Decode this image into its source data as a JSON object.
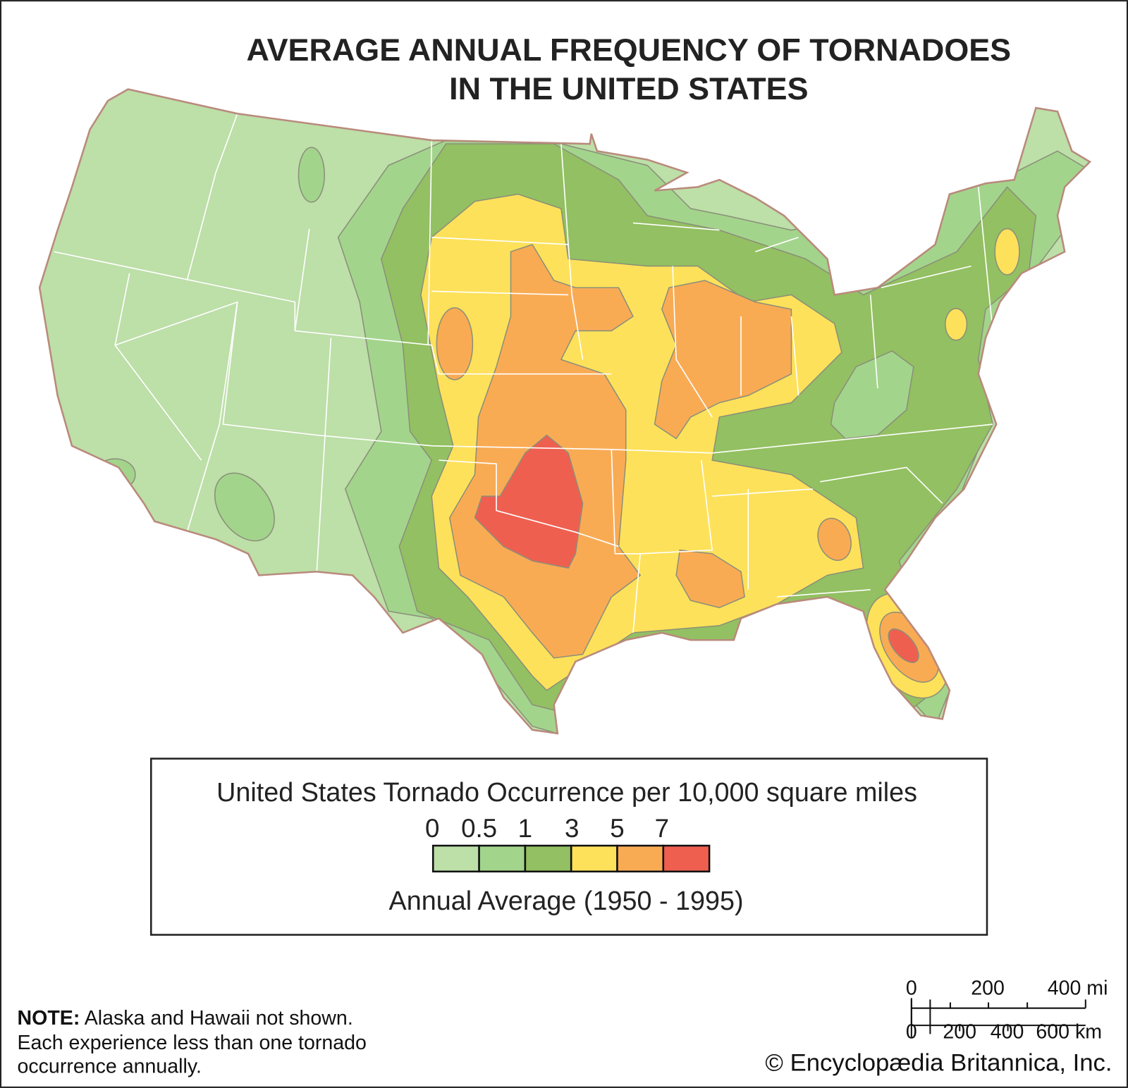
{
  "title": {
    "line1": "AVERAGE ANNUAL FREQUENCY OF TORNADOES",
    "line2": "IN THE UNITED STATES"
  },
  "legend": {
    "heading": "United States Tornado Occurrence per 10,000 square miles",
    "ticks": [
      "0",
      "0.5",
      "1",
      "3",
      "5",
      "7"
    ],
    "caption": "Annual Average (1950 - 1995)",
    "classes": [
      {
        "range": "0–0.5",
        "color": "#bddfa8"
      },
      {
        "range": "0.5–1",
        "color": "#a3d48c"
      },
      {
        "range": "1–3",
        "color": "#93c062"
      },
      {
        "range": "3–5",
        "color": "#fde15a"
      },
      {
        "range": "5–7",
        "color": "#f9ab54"
      },
      {
        "range": "7+",
        "color": "#ef5f50"
      }
    ]
  },
  "note": {
    "label": "NOTE:",
    "line1": " Alaska and Hawaii not shown.",
    "line2": "Each experience less than one tornado",
    "line3": "occurrence annually."
  },
  "scale_bar": {
    "mi_ticks": [
      "0",
      "200",
      "400 mi"
    ],
    "km_ticks": [
      "0",
      "200",
      "400",
      "600 km"
    ]
  },
  "credit": "© Encyclopædia Britannica, Inc.",
  "colors": {
    "border": "#b98a7c",
    "coast": "#6aa9d6",
    "state_lines": "#ffffff"
  }
}
